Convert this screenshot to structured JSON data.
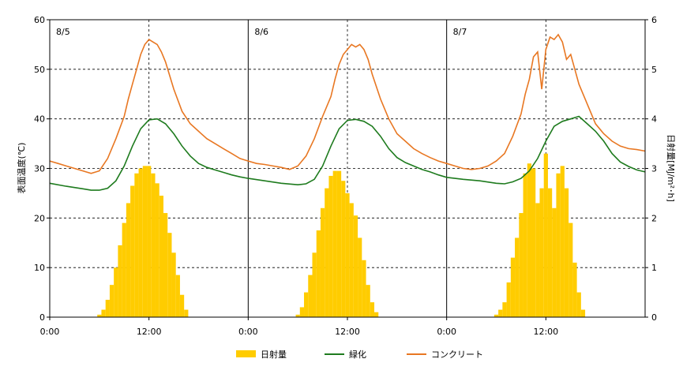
{
  "chart_data": {
    "type": "line",
    "ylabel": "表面温度(℃)",
    "y2label": "日射量[MJ/m²･h]",
    "ylim": [
      0,
      60
    ],
    "y2lim": [
      0,
      6
    ],
    "yticks": [
      "0",
      "10",
      "20",
      "30",
      "40",
      "50",
      "60"
    ],
    "y2ticks": [
      "0",
      "1",
      "2",
      "3",
      "4",
      "5",
      "6"
    ],
    "xticks": [
      "0:00",
      "12:00",
      "0:00",
      "12:00",
      "0:00",
      "12:00"
    ],
    "day_labels": [
      "8/5",
      "8/6",
      "8/7"
    ],
    "grid": true,
    "legend_position": "bottom",
    "series": [
      {
        "name": "日射量",
        "kind": "bar",
        "axis": "right",
        "color": "#FFCC00",
        "x": [
          5.5,
          6,
          6.5,
          7,
          7.5,
          8,
          8.5,
          9,
          9.5,
          10,
          10.5,
          11,
          11.5,
          12,
          12.5,
          13,
          13.5,
          14,
          14.5,
          15,
          15.5,
          16,
          16.5,
          17,
          29.5,
          30,
          30.5,
          31,
          31.5,
          32,
          32.5,
          33,
          33.5,
          34,
          34.5,
          35,
          35.5,
          36,
          36.5,
          37,
          37.5,
          38,
          38.5,
          39,
          39.5,
          40,
          40.5,
          41,
          53.5,
          54,
          54.5,
          55,
          55.5,
          56,
          56.5,
          57,
          57.5,
          58,
          58.5,
          59,
          59.5,
          60,
          60.5,
          61,
          61.5,
          62,
          62.5,
          63,
          63.5,
          64,
          64.5,
          65
        ],
        "values": [
          0.0,
          0.05,
          0.15,
          0.35,
          0.65,
          1.0,
          1.45,
          1.9,
          2.3,
          2.65,
          2.9,
          3.0,
          3.05,
          3.05,
          2.9,
          2.7,
          2.45,
          2.1,
          1.7,
          1.3,
          0.85,
          0.45,
          0.15,
          0.0,
          0.0,
          0.05,
          0.2,
          0.5,
          0.85,
          1.3,
          1.75,
          2.2,
          2.6,
          2.85,
          2.95,
          2.95,
          2.75,
          2.5,
          2.3,
          2.05,
          1.6,
          1.15,
          0.65,
          0.3,
          0.1,
          0.0,
          0.0,
          0.0,
          0.0,
          0.05,
          0.15,
          0.3,
          0.7,
          1.2,
          1.6,
          2.1,
          2.9,
          3.1,
          3.0,
          2.3,
          2.6,
          3.3,
          2.6,
          2.2,
          2.9,
          3.05,
          2.6,
          1.9,
          1.1,
          0.5,
          0.15,
          0.0
        ]
      },
      {
        "name": "緑化",
        "kind": "line",
        "axis": "left",
        "color": "#1E7B1E",
        "x": [
          0,
          2,
          4,
          5,
          6,
          7,
          8,
          9,
          10,
          11,
          12,
          13,
          14,
          15,
          16,
          17,
          18,
          19,
          20,
          21,
          22,
          23,
          24,
          26,
          28,
          30,
          31,
          32,
          33,
          34,
          35,
          36,
          37,
          38,
          39,
          40,
          41,
          42,
          43,
          44,
          45,
          46,
          47,
          48,
          50,
          52,
          54,
          55,
          56,
          57,
          58,
          59,
          60,
          61,
          62,
          63,
          64,
          65,
          66,
          67,
          68,
          69,
          70,
          71,
          72
        ],
        "values": [
          27.0,
          26.4,
          25.9,
          25.6,
          25.6,
          26.0,
          27.5,
          30.5,
          34.5,
          38.0,
          39.8,
          40.0,
          39.0,
          37.0,
          34.5,
          32.5,
          31.0,
          30.2,
          29.7,
          29.2,
          28.7,
          28.3,
          28.0,
          27.5,
          27.0,
          26.7,
          26.9,
          27.8,
          30.5,
          34.5,
          38.0,
          39.7,
          39.9,
          39.5,
          38.5,
          36.5,
          34.0,
          32.2,
          31.2,
          30.5,
          29.8,
          29.3,
          28.7,
          28.2,
          27.8,
          27.5,
          27.0,
          26.9,
          27.3,
          28.0,
          29.5,
          32.0,
          35.5,
          38.5,
          39.5,
          40.0,
          40.5,
          39.0,
          37.5,
          35.5,
          33.0,
          31.3,
          30.4,
          29.7,
          29.3
        ]
      },
      {
        "name": "コンクリート",
        "kind": "line",
        "axis": "left",
        "color": "#E87722",
        "x": [
          0,
          1,
          2,
          3,
          4,
          5,
          6,
          7,
          8,
          9,
          9.5,
          10,
          10.5,
          11,
          11.5,
          12,
          12.5,
          13,
          13.5,
          14,
          15,
          16,
          17,
          18,
          19,
          20,
          21,
          22,
          23,
          24,
          25,
          26,
          27,
          28,
          29,
          30,
          31,
          32,
          33,
          34,
          34.5,
          35,
          35.5,
          36,
          36.5,
          37,
          37.5,
          38,
          38.5,
          39,
          40,
          41,
          42,
          43,
          44,
          45,
          46,
          47,
          48,
          49,
          50,
          51,
          52,
          53,
          54,
          55,
          56,
          57,
          57.5,
          58,
          58.5,
          59,
          59.5,
          60,
          60.5,
          61,
          61.5,
          62,
          62.5,
          63,
          63.5,
          64,
          65,
          66,
          67,
          68,
          69,
          70,
          71,
          72
        ],
        "values": [
          31.5,
          31.0,
          30.5,
          30.0,
          29.5,
          29.0,
          29.5,
          32.0,
          36.0,
          40.5,
          44.0,
          47.0,
          50.0,
          53.0,
          55.0,
          56.0,
          55.5,
          55.0,
          53.5,
          51.5,
          46.0,
          41.5,
          39.0,
          37.5,
          36.0,
          35.0,
          34.0,
          33.0,
          32.0,
          31.5,
          31.0,
          30.8,
          30.5,
          30.2,
          29.8,
          30.5,
          32.5,
          36.0,
          40.5,
          44.5,
          48.0,
          51.0,
          53.0,
          54.0,
          55.0,
          54.5,
          55.0,
          54.0,
          52.0,
          49.0,
          44.0,
          40.0,
          37.0,
          35.5,
          34.0,
          33.0,
          32.2,
          31.5,
          31.0,
          30.5,
          30.0,
          29.8,
          30.0,
          30.5,
          31.5,
          33.0,
          36.5,
          41.0,
          45.0,
          48.0,
          52.5,
          53.5,
          46.0,
          54.0,
          56.5,
          56.0,
          57.0,
          55.5,
          52.0,
          53.0,
          50.0,
          47.0,
          43.0,
          39.0,
          37.0,
          35.5,
          34.5,
          34.0,
          33.8,
          33.5
        ]
      }
    ]
  }
}
